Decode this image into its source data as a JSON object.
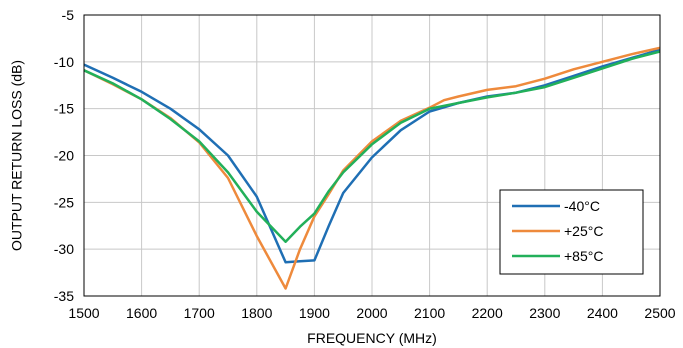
{
  "chart_data": {
    "type": "line",
    "title": "",
    "xlabel": "FREQUENCY (MHz)",
    "ylabel": "OUTPUT RETURN LOSS (dB)",
    "xlim": [
      1500,
      2500
    ],
    "ylim": [
      -35,
      -5
    ],
    "xticks": [
      1500,
      1600,
      1700,
      1800,
      1900,
      2000,
      2100,
      2200,
      2300,
      2400,
      2500
    ],
    "yticks": [
      -5,
      -10,
      -15,
      -20,
      -25,
      -30,
      -35
    ],
    "grid": true,
    "legend_position": "bottom-right",
    "series": [
      {
        "name": "-40°C",
        "color": "#1f6fb4",
        "x": [
          1500,
          1550,
          1600,
          1650,
          1700,
          1750,
          1800,
          1850,
          1875,
          1900,
          1925,
          1950,
          2000,
          2050,
          2100,
          2150,
          2200,
          2250,
          2300,
          2350,
          2400,
          2450,
          2500
        ],
        "y": [
          -10.3,
          -11.7,
          -13.2,
          -15.0,
          -17.2,
          -20.0,
          -24.4,
          -31.4,
          -31.3,
          -31.2,
          -27.5,
          -24.0,
          -20.2,
          -17.3,
          -15.3,
          -14.4,
          -13.7,
          -13.3,
          -12.5,
          -11.5,
          -10.5,
          -9.6,
          -8.7
        ]
      },
      {
        "name": "+25°C",
        "color": "#ee8a3c",
        "x": [
          1500,
          1550,
          1600,
          1650,
          1700,
          1750,
          1800,
          1850,
          1875,
          1900,
          1925,
          1950,
          2000,
          2050,
          2100,
          2125,
          2150,
          2200,
          2250,
          2300,
          2350,
          2400,
          2450,
          2500
        ],
        "y": [
          -10.9,
          -12.4,
          -14.0,
          -16.0,
          -18.6,
          -22.4,
          -28.6,
          -34.2,
          -30.0,
          -26.5,
          -24.1,
          -21.6,
          -18.5,
          -16.3,
          -14.9,
          -14.1,
          -13.7,
          -13.0,
          -12.6,
          -11.8,
          -10.8,
          -10.0,
          -9.2,
          -8.5
        ]
      },
      {
        "name": "+85°C",
        "color": "#22b05a",
        "x": [
          1500,
          1550,
          1600,
          1650,
          1700,
          1750,
          1800,
          1850,
          1875,
          1900,
          1925,
          1950,
          2000,
          2050,
          2100,
          2150,
          2200,
          2250,
          2300,
          2350,
          2400,
          2450,
          2500
        ],
        "y": [
          -10.9,
          -12.3,
          -14.0,
          -16.1,
          -18.5,
          -21.8,
          -26.0,
          -29.2,
          -27.6,
          -26.2,
          -23.8,
          -21.8,
          -18.8,
          -16.5,
          -15.0,
          -14.4,
          -13.8,
          -13.3,
          -12.7,
          -11.7,
          -10.7,
          -9.7,
          -8.9
        ]
      }
    ]
  }
}
